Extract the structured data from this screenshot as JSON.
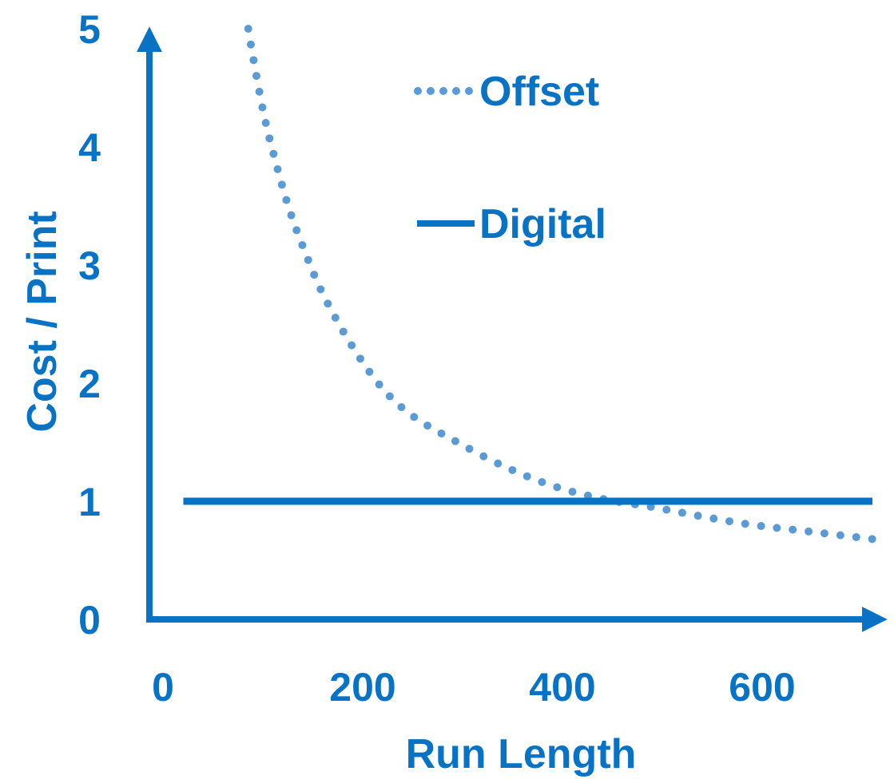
{
  "chart_data": {
    "type": "line",
    "title": "",
    "xlabel": "Run Length",
    "ylabel": "Cost / Print",
    "xlim": [
      0,
      720
    ],
    "ylim": [
      0,
      5
    ],
    "xticks": [
      "0",
      "200",
      "400",
      "600"
    ],
    "yticks": [
      "0",
      "1",
      "2",
      "3",
      "4",
      "5"
    ],
    "grid": false,
    "legend_position": "top-center",
    "series": [
      {
        "name": "Offset",
        "style": "dotted",
        "color": "#5b9bd5",
        "x": [
          95,
          100,
          110,
          120,
          135,
          150,
          170,
          200,
          230,
          260,
          300,
          350,
          400,
          450,
          500,
          550,
          600,
          650,
          720
        ],
        "y": [
          5.0,
          4.75,
          4.3,
          3.95,
          3.5,
          3.15,
          2.75,
          2.3,
          1.95,
          1.72,
          1.52,
          1.3,
          1.13,
          1.02,
          0.95,
          0.87,
          0.8,
          0.75,
          0.68
        ]
      },
      {
        "name": "Digital",
        "style": "solid",
        "color": "#0873c4",
        "x": [
          30,
          720
        ],
        "y": [
          1.0,
          1.0
        ]
      }
    ]
  }
}
